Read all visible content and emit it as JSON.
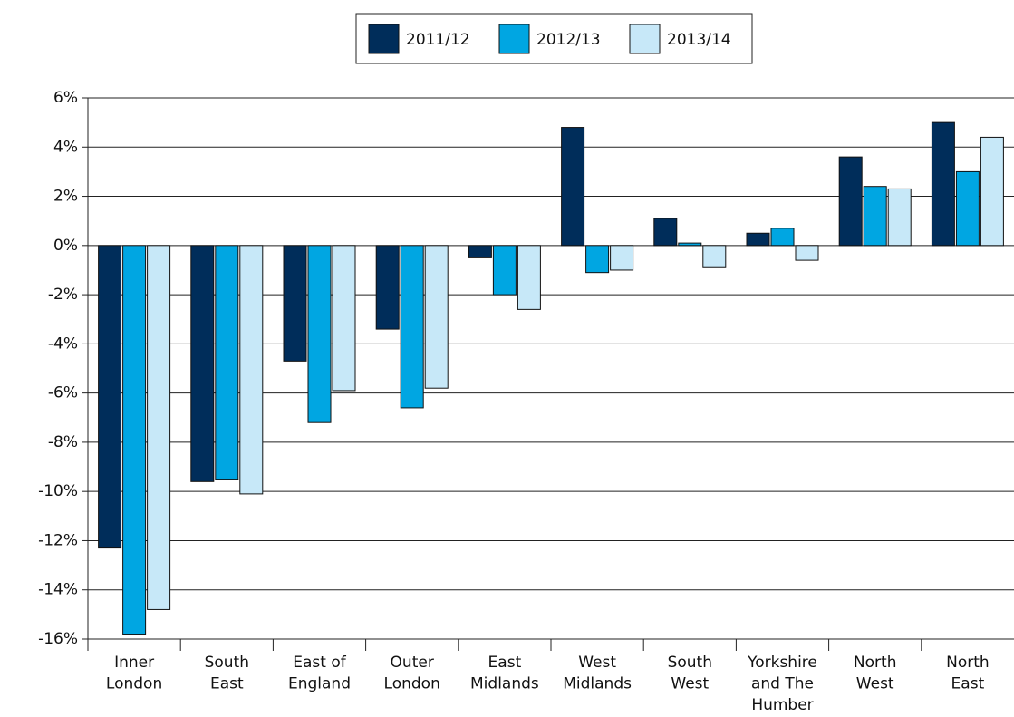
{
  "chart_data": {
    "type": "bar",
    "categories": [
      [
        "Inner",
        "London"
      ],
      [
        "South",
        "East"
      ],
      [
        "East of",
        "England"
      ],
      [
        "Outer",
        "London"
      ],
      [
        "East",
        "Midlands"
      ],
      [
        "West",
        "Midlands"
      ],
      [
        "South",
        "West"
      ],
      [
        "Yorkshire",
        "and The",
        "Humber"
      ],
      [
        "North",
        "West"
      ],
      [
        "North",
        "East"
      ]
    ],
    "series": [
      {
        "name": "2011/12",
        "color": "#002d5a",
        "values": [
          -12.3,
          -9.6,
          -4.7,
          -3.4,
          -0.5,
          4.8,
          1.1,
          0.5,
          3.6,
          5.0
        ]
      },
      {
        "name": "2012/13",
        "color": "#00a6e2",
        "values": [
          -15.8,
          -9.5,
          -7.2,
          -6.6,
          -2.0,
          -1.1,
          0.1,
          0.7,
          2.4,
          3.0
        ]
      },
      {
        "name": "2013/14",
        "color": "#c7e8f8",
        "values": [
          -14.8,
          -10.1,
          -5.9,
          -5.8,
          -2.6,
          -1.0,
          -0.9,
          -0.6,
          2.3,
          4.4
        ]
      }
    ],
    "ylim": [
      -16,
      6
    ],
    "yticks": [
      {
        "value": 6,
        "label": "6%"
      },
      {
        "value": 4,
        "label": "4%"
      },
      {
        "value": 2,
        "label": "2%"
      },
      {
        "value": 0,
        "label": "0%"
      },
      {
        "value": -2,
        "label": "-2%"
      },
      {
        "value": -4,
        "label": "-4%"
      },
      {
        "value": -6,
        "label": "-6%"
      },
      {
        "value": -8,
        "label": "-8%"
      },
      {
        "value": -10,
        "label": "-10%"
      },
      {
        "value": -12,
        "label": "-12%"
      },
      {
        "value": -14,
        "label": "-14%"
      },
      {
        "value": -16,
        "label": "-16%"
      }
    ],
    "grid": true,
    "legend": "top"
  }
}
